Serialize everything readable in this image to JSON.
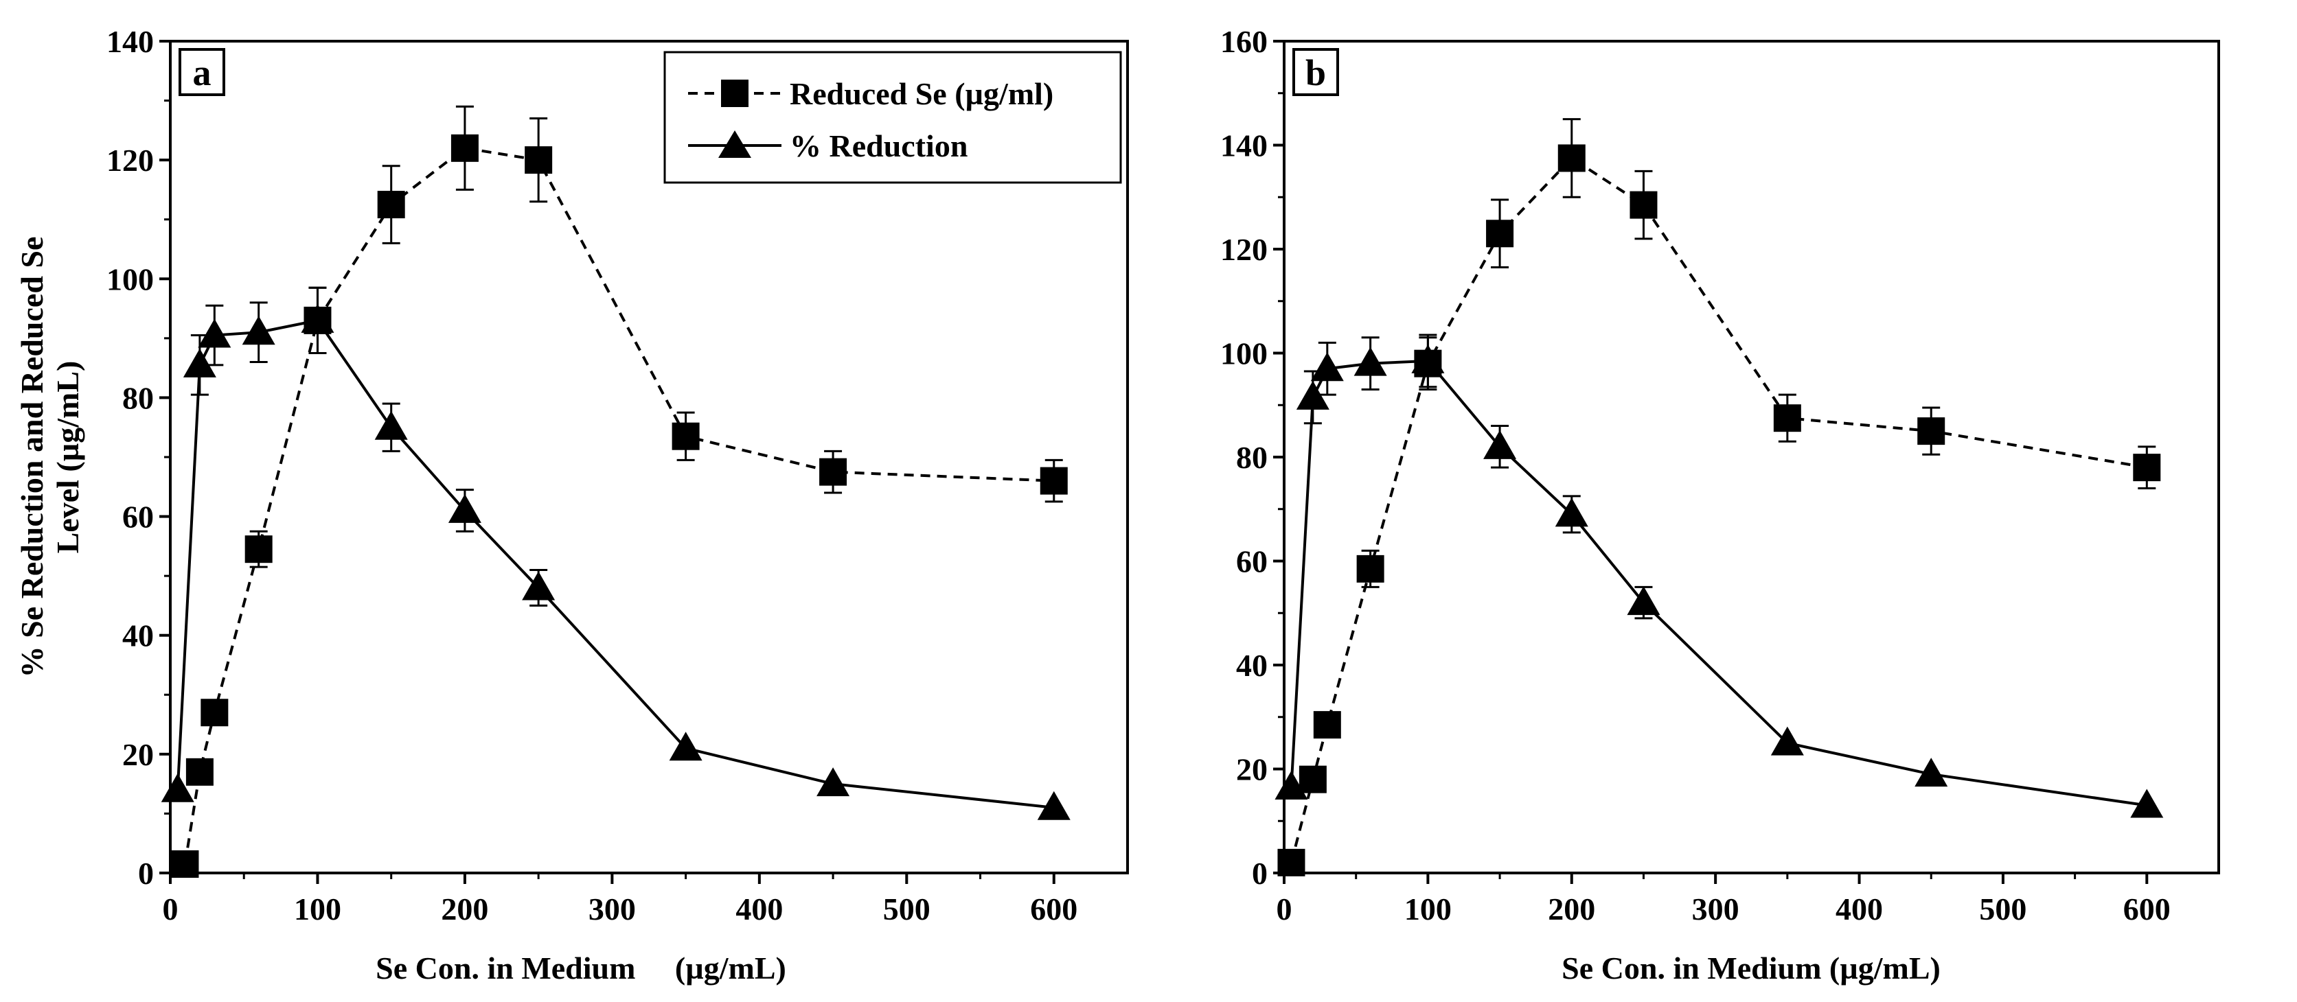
{
  "figure": {
    "ylabel_line1": "% Se Reduction and Reduced Se",
    "ylabel_line2": "Level (µg/mL)",
    "legend": {
      "reduced_se": "Reduced  Se (µg/ml)",
      "reduction": "% Reduction"
    }
  },
  "chart_data": [
    {
      "panel": "a",
      "type": "line",
      "title": "",
      "xlabel": "Se Con. in Medium     (µg/mL)",
      "ylabel": "% Se Reduction and Reduced Se Level (µg/mL)",
      "xlim": [
        0,
        650
      ],
      "ylim": [
        0,
        140
      ],
      "xticks": [
        0,
        100,
        200,
        300,
        400,
        500,
        600
      ],
      "yticks": [
        0,
        20,
        40,
        60,
        80,
        100,
        120,
        140
      ],
      "x": [
        5,
        10,
        20,
        30,
        60,
        100,
        150,
        200,
        250,
        350,
        450,
        600
      ],
      "series": [
        {
          "name": "Reduced  Se (µg/ml)",
          "marker": "square",
          "linestyle": "dashed",
          "x": [
            10,
            20,
            30,
            60,
            100,
            150,
            200,
            250,
            350,
            450,
            600
          ],
          "values": [
            1.5,
            17,
            27,
            54.5,
            93,
            112.5,
            122,
            120,
            73.5,
            67.5,
            66
          ],
          "errors": [
            0,
            0,
            0,
            3,
            5.5,
            6.5,
            7,
            7,
            4,
            3.5,
            3.5
          ]
        },
        {
          "name": "% Reduction",
          "marker": "triangle",
          "linestyle": "solid",
          "x": [
            5,
            20,
            30,
            60,
            100,
            150,
            200,
            250,
            350,
            450,
            600
          ],
          "values": [
            14,
            85.5,
            90.5,
            91,
            93,
            75,
            61,
            48,
            21,
            15,
            11
          ],
          "errors": [
            0,
            5,
            5,
            5,
            5.5,
            4,
            3.5,
            3,
            0,
            0,
            0
          ]
        }
      ]
    },
    {
      "panel": "b",
      "type": "line",
      "title": "",
      "xlabel": "Se Con. in Medium (µg/mL)",
      "ylabel": "",
      "xlim": [
        0,
        650
      ],
      "ylim": [
        0,
        160
      ],
      "xticks": [
        0,
        100,
        200,
        300,
        400,
        500,
        600
      ],
      "yticks": [
        0,
        20,
        40,
        60,
        80,
        100,
        120,
        140,
        160
      ],
      "series": [
        {
          "name": "Reduced  Se (µg/ml)",
          "marker": "square",
          "linestyle": "dashed",
          "x": [
            5,
            20,
            30,
            60,
            100,
            150,
            200,
            250,
            350,
            450,
            600
          ],
          "values": [
            2,
            18,
            28.5,
            58.5,
            98,
            123,
            137.5,
            128.5,
            87.5,
            85,
            78
          ],
          "errors": [
            0,
            0,
            0,
            3.5,
            5,
            6.5,
            7.5,
            6.5,
            4.5,
            4.5,
            4
          ]
        },
        {
          "name": "% Reduction",
          "marker": "triangle",
          "linestyle": "solid",
          "x": [
            5,
            20,
            30,
            60,
            100,
            150,
            200,
            250,
            350,
            450,
            600
          ],
          "values": [
            16.5,
            91.5,
            97,
            98,
            98.5,
            82,
            69,
            52,
            25,
            19,
            13
          ],
          "errors": [
            0,
            5,
            5,
            5,
            5,
            4,
            3.5,
            3,
            0,
            0,
            0
          ]
        }
      ]
    }
  ]
}
